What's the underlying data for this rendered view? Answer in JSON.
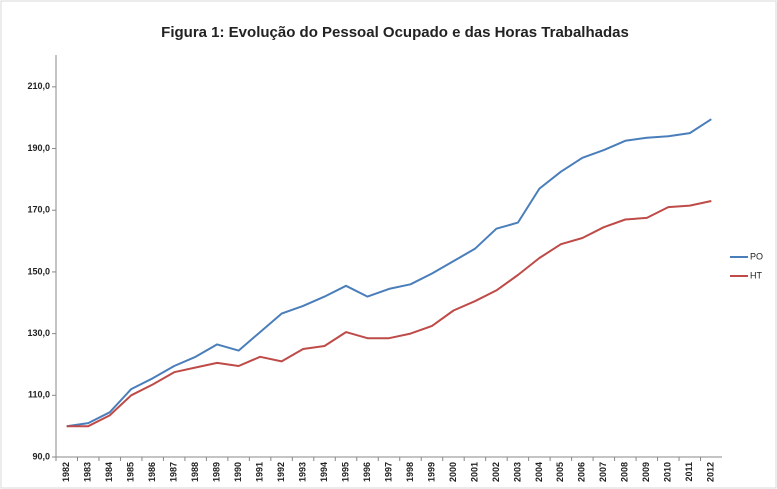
{
  "chart_data": {
    "type": "line",
    "title": "Figura 1: Evolução do Pessoal Ocupado e das Horas Trabalhadas",
    "categories": [
      "1982",
      "1983",
      "1984",
      "1985",
      "1986",
      "1987",
      "1988",
      "1989",
      "1990",
      "1991",
      "1992",
      "1993",
      "1994",
      "1995",
      "1996",
      "1997",
      "1998",
      "1999",
      "2000",
      "2001",
      "2002",
      "2003",
      "2004",
      "2005",
      "2006",
      "2007",
      "2008",
      "2009",
      "2010",
      "2011",
      "2012"
    ],
    "series": [
      {
        "name": "PO",
        "color": "#4a7ebb",
        "values": [
          100,
          101,
          104.5,
          112,
          115.5,
          119.5,
          122.5,
          126.5,
          124.5,
          130.5,
          136.5,
          139,
          142,
          145.5,
          142,
          144.5,
          146,
          149.5,
          153.5,
          157.5,
          164,
          166,
          177,
          182.5,
          187,
          189.5,
          192.5,
          193.5,
          194,
          195,
          199.5
        ]
      },
      {
        "name": "HT",
        "color": "#be4b48",
        "values": [
          100,
          100,
          103.5,
          110,
          113.5,
          117.5,
          119,
          120.5,
          119.5,
          122.5,
          121,
          125,
          126,
          130.5,
          128.5,
          128.5,
          130,
          132.5,
          137.5,
          140.5,
          144,
          149,
          154.5,
          159,
          161,
          164.5,
          167,
          167.5,
          171,
          171.5,
          173
        ]
      }
    ],
    "ylim": [
      90,
      220
    ],
    "yticks": [
      {
        "value": 90,
        "label": "90,0"
      },
      {
        "value": 110,
        "label": "110,0"
      },
      {
        "value": 130,
        "label": "130,0"
      },
      {
        "value": 150,
        "label": "150,0"
      },
      {
        "value": 170,
        "label": "170,0"
      },
      {
        "value": 190,
        "label": "190,0"
      },
      {
        "value": 210,
        "label": "210,0"
      }
    ],
    "grid": false,
    "legend": "right"
  }
}
